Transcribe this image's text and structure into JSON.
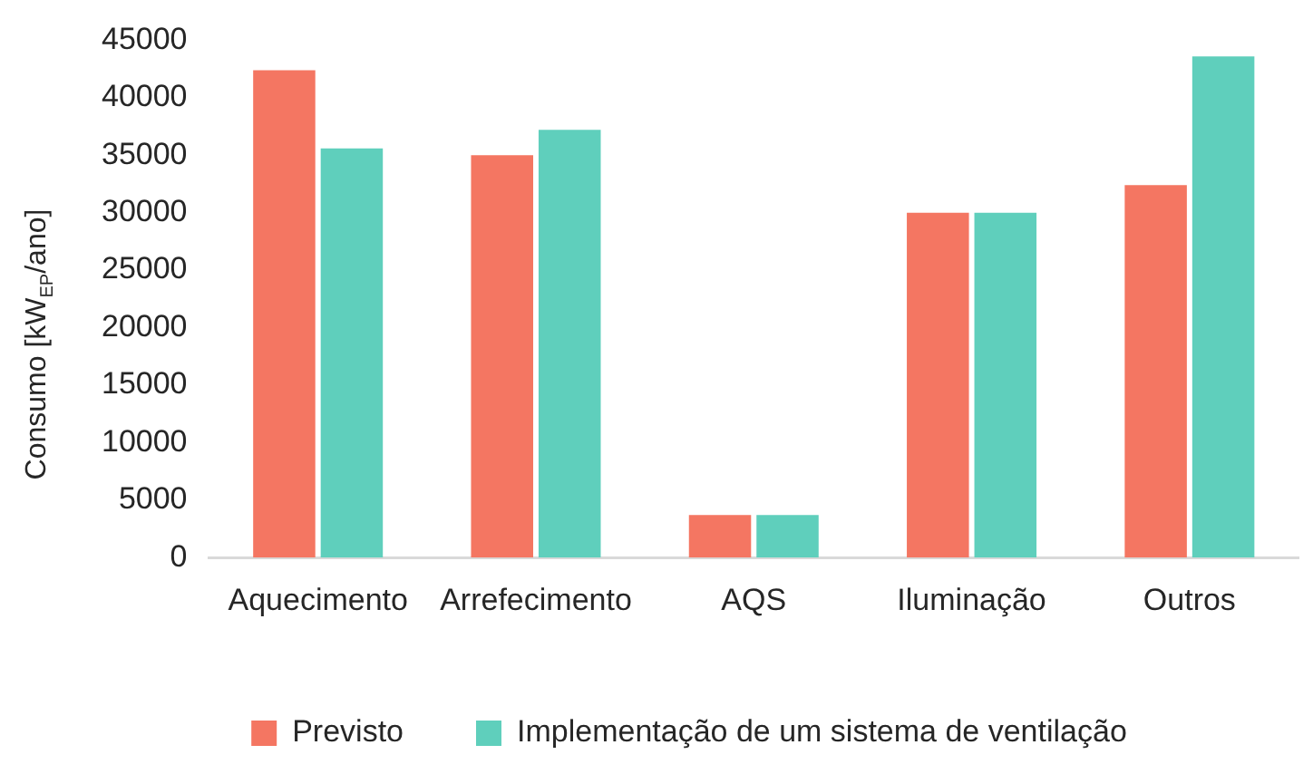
{
  "chart_data": {
    "type": "bar",
    "ylabel": "Consumo [kW$_{EP}$/ano]",
    "categories": [
      "Aquecimento",
      "Arrefecimento",
      "AQS",
      "Iluminação",
      "Outros"
    ],
    "series": [
      {
        "name": "Previsto",
        "color": "#f47662",
        "values": [
          42400,
          35000,
          3700,
          30000,
          32400
        ]
      },
      {
        "name": "Implementação de um sistema de ventilação",
        "color": "#5fcfbc",
        "values": [
          35600,
          37200,
          3700,
          30000,
          43600
        ]
      }
    ],
    "ylim": [
      0,
      45000
    ],
    "yticks": [
      0,
      5000,
      10000,
      15000,
      20000,
      25000,
      30000,
      35000,
      40000,
      45000
    ],
    "grid": false,
    "legend": "bottom"
  }
}
